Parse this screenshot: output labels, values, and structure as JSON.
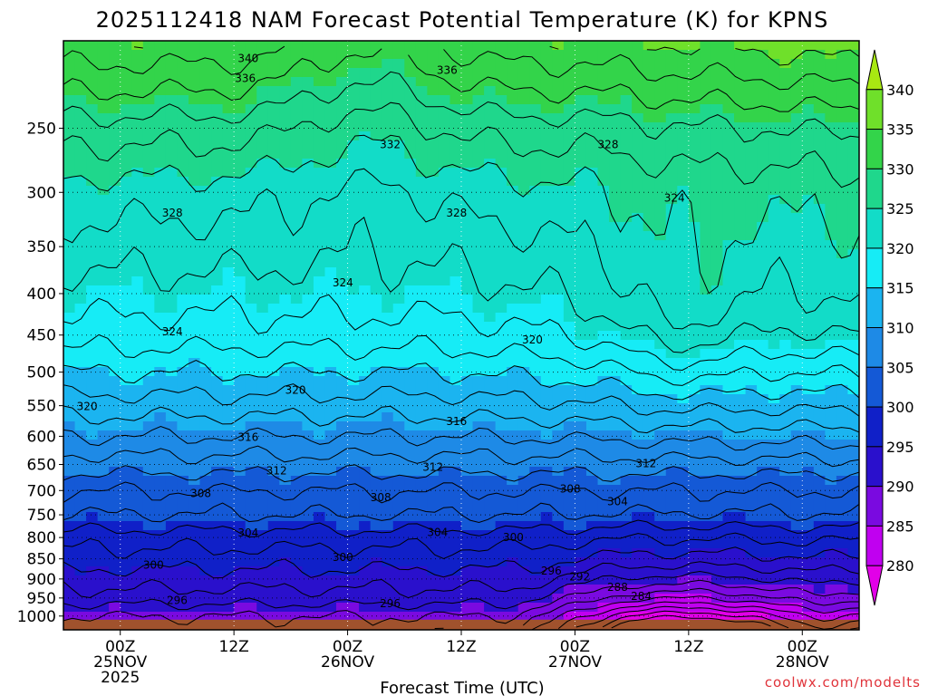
{
  "chart_data": {
    "type": "heatmap",
    "title": "2025112418 NAM Forecast Potential Temperature (K) for KPNS",
    "xlabel": "Forecast Time (UTC)",
    "ylabel": "",
    "credit": "coolwx.com/modelts",
    "x_ticks": [
      {
        "label": "00Z",
        "sub": "25NOV",
        "sub2": "2025",
        "hours": 6
      },
      {
        "label": "12Z",
        "sub": "",
        "sub2": "",
        "hours": 18
      },
      {
        "label": "00Z",
        "sub": "26NOV",
        "sub2": "",
        "hours": 30
      },
      {
        "label": "12Z",
        "sub": "",
        "sub2": "",
        "hours": 42
      },
      {
        "label": "00Z",
        "sub": "27NOV",
        "sub2": "",
        "hours": 54
      },
      {
        "label": "12Z",
        "sub": "",
        "sub2": "",
        "hours": 66
      },
      {
        "label": "00Z",
        "sub": "28NOV",
        "sub2": "",
        "hours": 78
      }
    ],
    "xlim_hours": [
      0,
      84
    ],
    "y_scale": "log",
    "ylim_hPa": [
      1040,
      195
    ],
    "y_ticks": [
      250,
      300,
      350,
      400,
      450,
      500,
      550,
      600,
      650,
      700,
      750,
      800,
      850,
      900,
      950,
      1000
    ],
    "colorbar": {
      "labels": [
        340,
        335,
        330,
        325,
        320,
        315,
        310,
        305,
        300,
        295,
        290,
        285,
        280
      ],
      "colors": [
        "#a8e812",
        "#6fe02a",
        "#33d44a",
        "#1fd78c",
        "#12dcc8",
        "#16ecf6",
        "#1bb4f0",
        "#1e8ae6",
        "#1459d6",
        "#1020c8",
        "#2a10cc",
        "#7a0ae0",
        "#c000f0",
        "#e200e8"
      ]
    },
    "contour_labels": [
      {
        "text": "340",
        "h": 19.5,
        "p": 205
      },
      {
        "text": "336",
        "h": 19.2,
        "p": 217
      },
      {
        "text": "336",
        "h": 40.5,
        "p": 212
      },
      {
        "text": "332",
        "h": 34.5,
        "p": 262
      },
      {
        "text": "328",
        "h": 57.5,
        "p": 262
      },
      {
        "text": "328",
        "h": 11.5,
        "p": 318
      },
      {
        "text": "328",
        "h": 41.5,
        "p": 318
      },
      {
        "text": "324",
        "h": 64.5,
        "p": 305
      },
      {
        "text": "324",
        "h": 29.5,
        "p": 388
      },
      {
        "text": "324",
        "h": 11.5,
        "p": 446
      },
      {
        "text": "320",
        "h": 49.5,
        "p": 456
      },
      {
        "text": "320",
        "h": 24.5,
        "p": 526
      },
      {
        "text": "320",
        "h": 2.5,
        "p": 551
      },
      {
        "text": "316",
        "h": 41.5,
        "p": 575
      },
      {
        "text": "316",
        "h": 19.5,
        "p": 602
      },
      {
        "text": "312",
        "h": 22.5,
        "p": 662
      },
      {
        "text": "312",
        "h": 39.0,
        "p": 655
      },
      {
        "text": "312",
        "h": 61.5,
        "p": 648
      },
      {
        "text": "308",
        "h": 14.5,
        "p": 706
      },
      {
        "text": "308",
        "h": 33.5,
        "p": 714
      },
      {
        "text": "308",
        "h": 53.5,
        "p": 697
      },
      {
        "text": "304",
        "h": 58.5,
        "p": 722
      },
      {
        "text": "304",
        "h": 19.5,
        "p": 790
      },
      {
        "text": "304",
        "h": 39.5,
        "p": 788
      },
      {
        "text": "300",
        "h": 47.5,
        "p": 800
      },
      {
        "text": "300",
        "h": 29.5,
        "p": 846
      },
      {
        "text": "300",
        "h": 9.5,
        "p": 865
      },
      {
        "text": "296",
        "h": 51.5,
        "p": 880
      },
      {
        "text": "292",
        "h": 54.5,
        "p": 895
      },
      {
        "text": "288",
        "h": 58.5,
        "p": 922
      },
      {
        "text": "284",
        "h": 61.0,
        "p": 946
      },
      {
        "text": "296",
        "h": 12.0,
        "p": 956
      },
      {
        "text": "296",
        "h": 34.5,
        "p": 965
      }
    ],
    "legend": "right colorbar",
    "grid": "dotted"
  }
}
